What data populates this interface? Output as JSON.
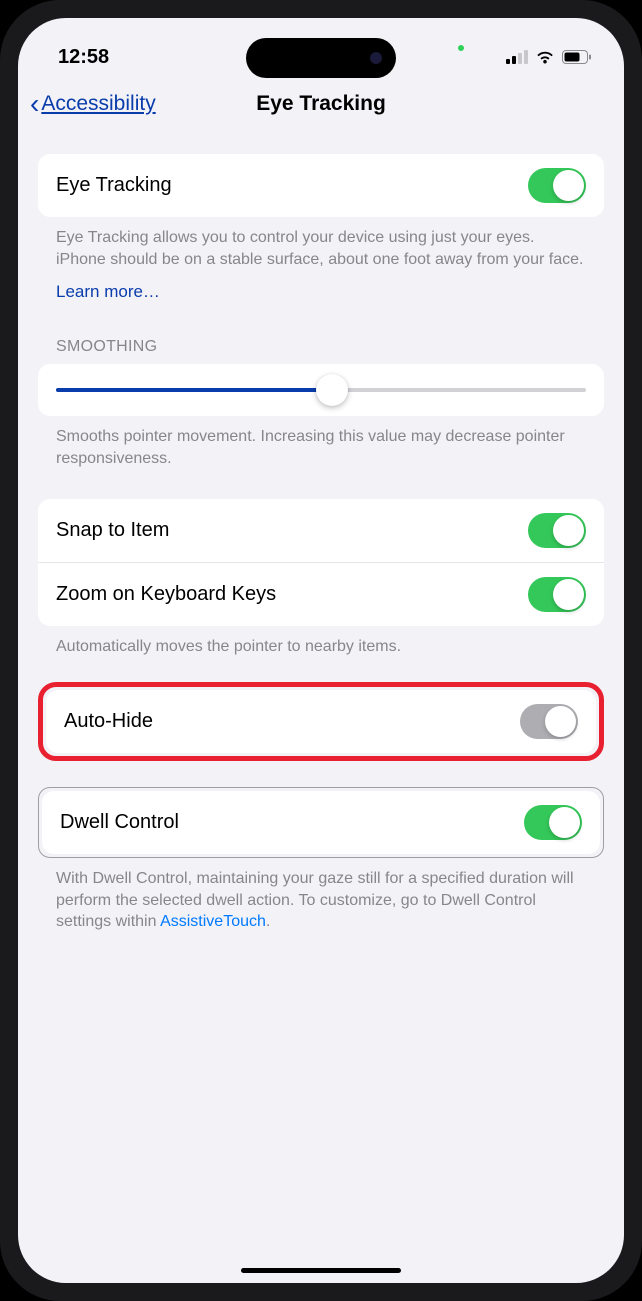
{
  "status": {
    "time": "12:58"
  },
  "nav": {
    "back_label": "Accessibility",
    "title": "Eye Tracking"
  },
  "rows": {
    "eye_tracking": {
      "label": "Eye Tracking",
      "on": true
    },
    "snap_to_item": {
      "label": "Snap to Item",
      "on": true
    },
    "zoom_keyboard": {
      "label": "Zoom on Keyboard Keys",
      "on": true
    },
    "auto_hide": {
      "label": "Auto-Hide",
      "on": false
    },
    "dwell": {
      "label": "Dwell Control",
      "on": true
    }
  },
  "text": {
    "eye_tracking_desc": "Eye Tracking allows you to control your device using just your eyes. iPhone should be on a stable surface, about one foot away from your face.",
    "learn_more": "Learn more…",
    "smoothing_header": "SMOOTHING",
    "smoothing_desc": "Smooths pointer movement. Increasing this value may decrease pointer responsiveness.",
    "snap_desc": "Automatically moves the pointer to nearby items.",
    "dwell_desc_prefix": "With Dwell Control, maintaining your gaze still for a specified duration will perform the selected dwell action. To customize, go to Dwell Control settings within ",
    "dwell_link": "AssistiveTouch",
    "dwell_desc_suffix": "."
  },
  "slider": {
    "value_pct": 52
  },
  "colors": {
    "bg": "#f2f2f7",
    "accent_link": "#0a3dab",
    "toggle_on": "#34c759",
    "highlight_red": "#e8202f"
  }
}
